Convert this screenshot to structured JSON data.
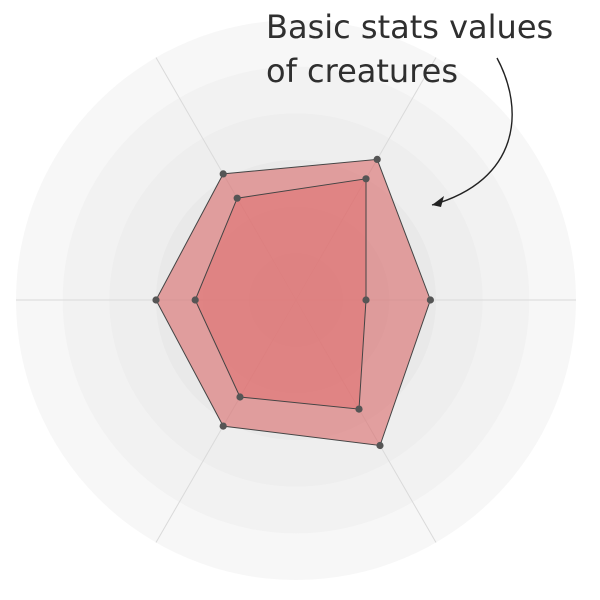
{
  "chart_data": {
    "type": "radar",
    "title": "",
    "annotation": {
      "lines": [
        "Basic stats values",
        "of creatures"
      ]
    },
    "axes": 6,
    "rlim": [
      0,
      1
    ],
    "grid_rings": 6,
    "grid": true,
    "series": [
      {
        "values": [
          0.48,
          0.58,
          0.52,
          0.5,
          0.52,
          0.6
        ],
        "color": "#d95f5f"
      },
      {
        "values": [
          0.25,
          0.5,
          0.42,
          0.36,
          0.4,
          0.45
        ],
        "color": "#e07070"
      }
    ]
  }
}
